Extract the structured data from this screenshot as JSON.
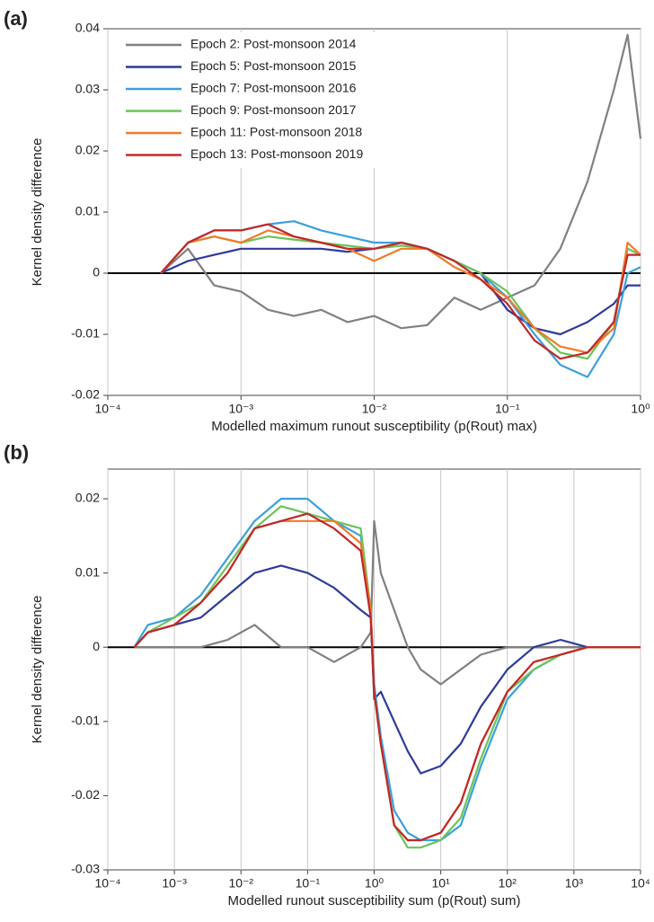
{
  "chart_data": [
    {
      "type": "line",
      "panel_label": "(a)",
      "ylabel": "Kernel density difference",
      "xlabel": "Modelled maximum runout susceptibility (p(Rout) max)",
      "xscale": "log",
      "xlim": [
        0.0001,
        1
      ],
      "ylim": [
        -0.02,
        0.04
      ],
      "grid": "x",
      "zero_line": true,
      "legend": "upper left",
      "xticks": [
        {
          "value": 0.0001,
          "label": "10⁻⁴"
        },
        {
          "value": 0.001,
          "label": "10⁻³"
        },
        {
          "value": 0.01,
          "label": "10⁻²"
        },
        {
          "value": 0.1,
          "label": "10⁻¹"
        },
        {
          "value": 1,
          "label": "10⁰"
        }
      ],
      "yticks": [
        -0.02,
        -0.01,
        0,
        0.01,
        0.02,
        0.03,
        0.04
      ],
      "x": [
        0.00025,
        0.0004,
        0.00063,
        0.001,
        0.0016,
        0.0025,
        0.004,
        0.0063,
        0.01,
        0.016,
        0.025,
        0.04,
        0.063,
        0.1,
        0.16,
        0.25,
        0.4,
        0.63,
        0.8,
        1
      ],
      "series": [
        {
          "name": "Epoch 2: Post-monsoon 2014",
          "color": "#808080",
          "values": [
            0,
            0.004,
            -0.002,
            -0.003,
            -0.006,
            -0.007,
            -0.006,
            -0.008,
            -0.007,
            -0.009,
            -0.0085,
            -0.004,
            -0.006,
            -0.004,
            -0.002,
            0.004,
            0.015,
            0.03,
            0.039,
            0.022
          ]
        },
        {
          "name": "Epoch 5: Post-monsoon 2015",
          "color": "#2e3a9a",
          "values": [
            0,
            0.002,
            0.003,
            0.004,
            0.004,
            0.004,
            0.004,
            0.0035,
            0.004,
            0.005,
            0.004,
            0.002,
            0,
            -0.006,
            -0.009,
            -0.01,
            -0.008,
            -0.005,
            -0.002,
            -0.002
          ]
        },
        {
          "name": "Epoch 7: Post-monsoon 2016",
          "color": "#3aa0dc",
          "values": [
            0,
            0.005,
            0.007,
            0.007,
            0.008,
            0.0085,
            0.007,
            0.006,
            0.005,
            0.005,
            0.004,
            0.002,
            0,
            -0.004,
            -0.01,
            -0.015,
            -0.017,
            -0.01,
            0,
            0.001
          ]
        },
        {
          "name": "Epoch 9: Post-monsoon 2017",
          "color": "#6cc35a",
          "values": [
            0,
            0.005,
            0.006,
            0.005,
            0.006,
            0.0055,
            0.005,
            0.0045,
            0.004,
            0.0045,
            0.004,
            0.002,
            0,
            -0.003,
            -0.009,
            -0.013,
            -0.014,
            -0.008,
            0.004,
            0.003
          ]
        },
        {
          "name": "Epoch 11: Post-monsoon 2018",
          "color": "#f07a2a",
          "values": [
            0,
            0.005,
            0.006,
            0.005,
            0.007,
            0.006,
            0.005,
            0.004,
            0.002,
            0.004,
            0.004,
            0.001,
            -0.001,
            -0.004,
            -0.009,
            -0.012,
            -0.013,
            -0.009,
            0.005,
            0.003
          ]
        },
        {
          "name": "Epoch 13: Post-monsoon 2019",
          "color": "#c0282a",
          "values": [
            0,
            0.005,
            0.007,
            0.007,
            0.008,
            0.006,
            0.005,
            0.004,
            0.004,
            0.005,
            0.004,
            0.002,
            -0.001,
            -0.005,
            -0.011,
            -0.014,
            -0.013,
            -0.008,
            0.003,
            0.003
          ]
        }
      ]
    },
    {
      "type": "line",
      "panel_label": "(b)",
      "ylabel": "Kernel density difference",
      "xlabel": "Modelled runout susceptibility sum (p(Rout) sum)",
      "xscale": "log",
      "xlim": [
        0.0001,
        10000
      ],
      "ylim": [
        -0.03,
        0.024
      ],
      "grid": "x",
      "zero_line": true,
      "xticks": [
        {
          "value": 0.0001,
          "label": "10⁻⁴"
        },
        {
          "value": 0.001,
          "label": "10⁻³"
        },
        {
          "value": 0.01,
          "label": "10⁻²"
        },
        {
          "value": 0.1,
          "label": "10⁻¹"
        },
        {
          "value": 1,
          "label": "10⁰"
        },
        {
          "value": 10,
          "label": "10¹"
        },
        {
          "value": 100,
          "label": "10²"
        },
        {
          "value": 1000,
          "label": "10³"
        },
        {
          "value": 10000,
          "label": "10⁴"
        }
      ],
      "yticks": [
        -0.03,
        -0.02,
        -0.01,
        0,
        0.01,
        0.02
      ],
      "x": [
        0.00025,
        0.0004,
        0.001,
        0.0025,
        0.0063,
        0.016,
        0.04,
        0.1,
        0.25,
        0.63,
        0.89,
        1,
        1.26,
        2,
        3.2,
        5,
        10,
        20,
        40,
        100,
        250,
        630,
        1600,
        4000,
        10000
      ],
      "series": [
        {
          "color": "#808080",
          "values": [
            0,
            0,
            0,
            0,
            0.001,
            0.003,
            0,
            0,
            -0.002,
            0,
            0.002,
            0.017,
            0.01,
            0.005,
            0,
            -0.003,
            -0.005,
            -0.003,
            -0.001,
            0,
            0,
            0,
            0,
            0,
            0
          ]
        },
        {
          "color": "#2e3a9a",
          "values": [
            0,
            0.002,
            0.003,
            0.004,
            0.007,
            0.01,
            0.011,
            0.01,
            0.008,
            0.005,
            0.004,
            -0.007,
            -0.006,
            -0.01,
            -0.014,
            -0.017,
            -0.016,
            -0.013,
            -0.008,
            -0.003,
            0,
            0.001,
            0,
            0,
            0
          ]
        },
        {
          "color": "#3aa0dc",
          "values": [
            0,
            0.003,
            0.004,
            0.007,
            0.012,
            0.017,
            0.02,
            0.02,
            0.017,
            0.015,
            0.005,
            -0.005,
            -0.012,
            -0.022,
            -0.025,
            -0.026,
            -0.026,
            -0.024,
            -0.016,
            -0.007,
            -0.003,
            -0.001,
            0,
            0,
            0
          ]
        },
        {
          "color": "#6cc35a",
          "values": [
            0,
            0.002,
            0.004,
            0.006,
            0.011,
            0.016,
            0.019,
            0.018,
            0.017,
            0.016,
            0.005,
            -0.006,
            -0.013,
            -0.024,
            -0.027,
            -0.027,
            -0.026,
            -0.023,
            -0.015,
            -0.006,
            -0.003,
            -0.001,
            0,
            0,
            0
          ]
        },
        {
          "color": "#f07a2a",
          "values": [
            0,
            0.002,
            0.003,
            0.006,
            0.01,
            0.016,
            0.017,
            0.017,
            0.017,
            0.014,
            0.005,
            -0.006,
            -0.013,
            -0.024,
            -0.026,
            -0.026,
            -0.025,
            -0.021,
            -0.013,
            -0.006,
            -0.002,
            -0.001,
            0,
            0,
            0
          ]
        },
        {
          "color": "#c0282a",
          "values": [
            0,
            0.002,
            0.003,
            0.006,
            0.01,
            0.016,
            0.017,
            0.018,
            0.016,
            0.013,
            0.004,
            -0.006,
            -0.013,
            -0.024,
            -0.026,
            -0.026,
            -0.025,
            -0.021,
            -0.013,
            -0.006,
            -0.002,
            -0.001,
            0,
            0,
            0
          ]
        }
      ]
    }
  ]
}
